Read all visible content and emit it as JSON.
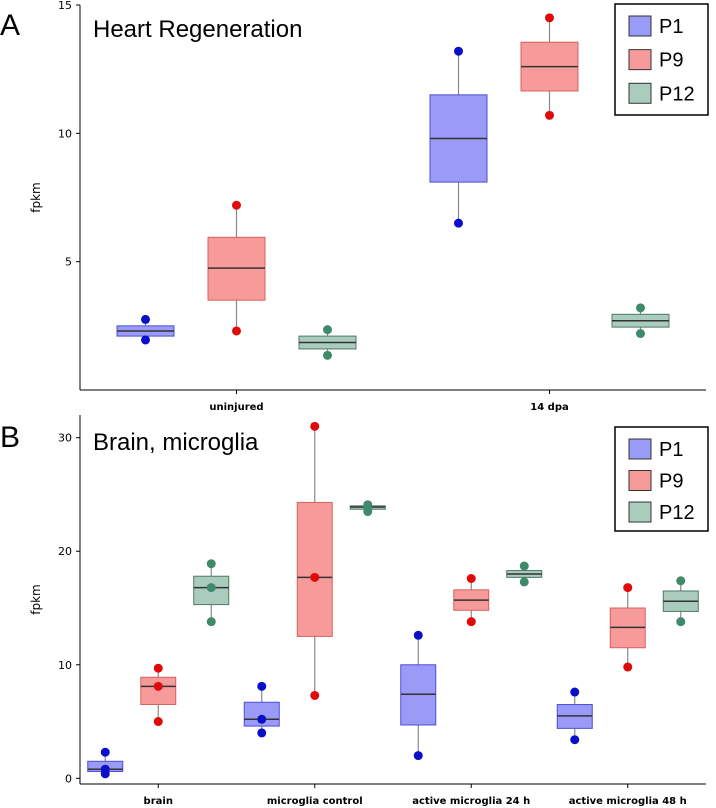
{
  "colors": {
    "P1_box": "#9a9af7",
    "P1_edge": "#4d4dd8",
    "P1_dot": "#0b10c8",
    "P9_box": "#f79a9a",
    "P9_edge": "#d86060",
    "P9_dot": "#e00a0a",
    "P12_box": "#a9ccbd",
    "P12_edge": "#4f7a66",
    "P12_dot": "#3f8a6a",
    "median": "#333333",
    "whisker": "#888888"
  },
  "chart_data": [
    {
      "panel": "A",
      "type": "box",
      "title": "Heart Regeneration",
      "ylabel": "fpkm",
      "xlabel": "",
      "ylim": [
        0,
        15
      ],
      "yticks": [
        5,
        10,
        15
      ],
      "legend_position": "top-right",
      "categories": [
        "uninjured",
        "14 dpa"
      ],
      "series": [
        {
          "name": "P1",
          "boxes": [
            {
              "whislo": 1.95,
              "q1": 2.1,
              "med": 2.3,
              "q3": 2.5,
              "whishi": 2.75,
              "points": [
                2.75,
                1.95
              ]
            },
            {
              "whislo": 6.5,
              "q1": 8.1,
              "med": 9.8,
              "q3": 11.5,
              "whishi": 13.2,
              "points": [
                13.2,
                6.5
              ]
            }
          ]
        },
        {
          "name": "P9",
          "boxes": [
            {
              "whislo": 2.3,
              "q1": 3.5,
              "med": 4.75,
              "q3": 5.95,
              "whishi": 7.2,
              "points": [
                7.2,
                2.3
              ]
            },
            {
              "whislo": 10.7,
              "q1": 11.65,
              "med": 12.6,
              "q3": 13.55,
              "whishi": 14.5,
              "points": [
                14.5,
                10.7
              ]
            }
          ]
        },
        {
          "name": "P12",
          "boxes": [
            {
              "whislo": 1.35,
              "q1": 1.6,
              "med": 1.85,
              "q3": 2.1,
              "whishi": 2.35,
              "points": [
                2.35,
                1.35
              ]
            },
            {
              "whislo": 2.2,
              "q1": 2.45,
              "med": 2.7,
              "q3": 2.95,
              "whishi": 3.2,
              "points": [
                3.2,
                2.2
              ]
            }
          ]
        }
      ]
    },
    {
      "panel": "B",
      "type": "box",
      "title": "Brain, microglia",
      "ylabel": "fpkm",
      "xlabel": "",
      "ylim": [
        -0.5,
        32
      ],
      "yticks": [
        0,
        10,
        20,
        30
      ],
      "legend_position": "top-right",
      "categories": [
        "brain",
        "microglia control",
        "active microglia 24 h",
        "active microglia 48 h"
      ],
      "series": [
        {
          "name": "P1",
          "boxes": [
            {
              "whislo": 0.4,
              "q1": 0.6,
              "med": 0.8,
              "q3": 1.5,
              "whishi": 2.3,
              "points": [
                2.3,
                0.8,
                0.4
              ]
            },
            {
              "whislo": 4.0,
              "q1": 4.6,
              "med": 5.2,
              "q3": 6.7,
              "whishi": 8.1,
              "points": [
                8.1,
                5.2,
                4.0
              ]
            },
            {
              "whislo": 2.0,
              "q1": 4.7,
              "med": 7.4,
              "q3": 10.0,
              "whishi": 12.6,
              "points": [
                12.6,
                2.0
              ]
            },
            {
              "whislo": 3.4,
              "q1": 4.4,
              "med": 5.5,
              "q3": 6.5,
              "whishi": 7.6,
              "points": [
                7.6,
                3.4
              ]
            }
          ]
        },
        {
          "name": "P9",
          "boxes": [
            {
              "whislo": 5.0,
              "q1": 6.5,
              "med": 8.1,
              "q3": 8.9,
              "whishi": 9.7,
              "points": [
                9.7,
                8.1,
                5.0
              ]
            },
            {
              "whislo": 7.3,
              "q1": 12.5,
              "med": 17.7,
              "q3": 24.3,
              "whishi": 31.0,
              "points": [
                31.0,
                17.7,
                7.3
              ]
            },
            {
              "whislo": 13.8,
              "q1": 14.8,
              "med": 15.7,
              "q3": 16.6,
              "whishi": 17.6,
              "points": [
                17.6,
                13.8
              ]
            },
            {
              "whislo": 9.8,
              "q1": 11.5,
              "med": 13.3,
              "q3": 15.0,
              "whishi": 16.8,
              "points": [
                16.8,
                9.8
              ]
            }
          ]
        },
        {
          "name": "P12",
          "boxes": [
            {
              "whislo": 13.8,
              "q1": 15.3,
              "med": 16.8,
              "q3": 17.8,
              "whishi": 18.9,
              "points": [
                18.9,
                16.8,
                13.8
              ]
            },
            {
              "whislo": 23.5,
              "q1": 23.7,
              "med": 23.9,
              "q3": 24.0,
              "whishi": 24.1,
              "points": [
                24.1,
                23.9,
                23.5
              ]
            },
            {
              "whislo": 17.3,
              "q1": 17.7,
              "med": 18.0,
              "q3": 18.3,
              "whishi": 18.7,
              "points": [
                18.7,
                17.3
              ]
            },
            {
              "whislo": 13.8,
              "q1": 14.7,
              "med": 15.6,
              "q3": 16.5,
              "whishi": 17.4,
              "points": [
                17.4,
                13.8
              ]
            }
          ]
        }
      ]
    }
  ]
}
